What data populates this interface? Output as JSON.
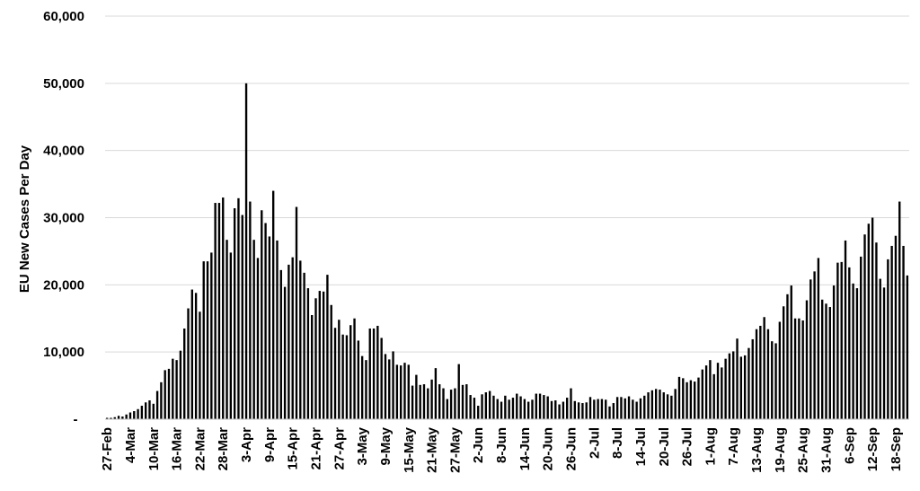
{
  "chart_data": {
    "type": "bar",
    "xlabel": "",
    "ylabel": "EU New Cases Per Day",
    "ylim": [
      0,
      60000
    ],
    "grid": true,
    "legend": "none",
    "bar_color": "#000000",
    "grid_color": "#d9d9d9",
    "yticks": [
      {
        "value": 0,
        "label": "-"
      },
      {
        "value": 10000,
        "label": "10,000"
      },
      {
        "value": 20000,
        "label": "20,000"
      },
      {
        "value": 30000,
        "label": "30,000"
      },
      {
        "value": 40000,
        "label": "40,000"
      },
      {
        "value": 50000,
        "label": "50,000"
      },
      {
        "value": 60000,
        "label": "60,000"
      }
    ],
    "xticks": [
      {
        "index": 0,
        "label": "27-Feb"
      },
      {
        "index": 6,
        "label": "4-Mar"
      },
      {
        "index": 12,
        "label": "10-Mar"
      },
      {
        "index": 18,
        "label": "16-Mar"
      },
      {
        "index": 24,
        "label": "22-Mar"
      },
      {
        "index": 30,
        "label": "28-Mar"
      },
      {
        "index": 36,
        "label": "3-Apr"
      },
      {
        "index": 42,
        "label": "9-Apr"
      },
      {
        "index": 48,
        "label": "15-Apr"
      },
      {
        "index": 54,
        "label": "21-Apr"
      },
      {
        "index": 60,
        "label": "27-Apr"
      },
      {
        "index": 66,
        "label": "3-May"
      },
      {
        "index": 72,
        "label": "9-May"
      },
      {
        "index": 78,
        "label": "15-May"
      },
      {
        "index": 84,
        "label": "21-May"
      },
      {
        "index": 90,
        "label": "27-May"
      },
      {
        "index": 96,
        "label": "2-Jun"
      },
      {
        "index": 102,
        "label": "8-Jun"
      },
      {
        "index": 108,
        "label": "14-Jun"
      },
      {
        "index": 114,
        "label": "20-Jun"
      },
      {
        "index": 120,
        "label": "26-Jun"
      },
      {
        "index": 126,
        "label": "2-Jul"
      },
      {
        "index": 132,
        "label": "8-Jul"
      },
      {
        "index": 138,
        "label": "14-Jul"
      },
      {
        "index": 144,
        "label": "20-Jul"
      },
      {
        "index": 150,
        "label": "26-Jul"
      },
      {
        "index": 156,
        "label": "1-Aug"
      },
      {
        "index": 162,
        "label": "7-Aug"
      },
      {
        "index": 168,
        "label": "13-Aug"
      },
      {
        "index": 174,
        "label": "19-Aug"
      },
      {
        "index": 180,
        "label": "25-Aug"
      },
      {
        "index": 186,
        "label": "31-Aug"
      },
      {
        "index": 192,
        "label": "6-Sep"
      },
      {
        "index": 198,
        "label": "12-Sep"
      },
      {
        "index": 204,
        "label": "18-Sep"
      }
    ],
    "values": [
      200,
      200,
      300,
      500,
      400,
      700,
      1000,
      1200,
      1500,
      2000,
      2500,
      2800,
      2300,
      4200,
      5500,
      7300,
      7500,
      9000,
      8800,
      10200,
      13500,
      16500,
      19300,
      18800,
      16000,
      23500,
      23500,
      24800,
      32200,
      32200,
      33000,
      26700,
      24800,
      31400,
      32900,
      30400,
      50000,
      32400,
      26700,
      24000,
      31100,
      29200,
      27200,
      34000,
      26600,
      22200,
      19700,
      23000,
      24100,
      31600,
      23600,
      21800,
      19500,
      15500,
      18000,
      19100,
      19000,
      21500,
      17000,
      13600,
      14800,
      12600,
      12500,
      14000,
      15000,
      11700,
      9400,
      8800,
      13500,
      13500,
      13900,
      12100,
      9700,
      8900,
      10100,
      8100,
      8000,
      8400,
      8100,
      5000,
      6600,
      5100,
      5200,
      4600,
      5900,
      7600,
      5200,
      4600,
      3000,
      4400,
      4600,
      8200,
      5100,
      5200,
      3600,
      3200,
      2000,
      3700,
      4000,
      4200,
      3500,
      3000,
      2600,
      3500,
      2900,
      3200,
      3800,
      3400,
      3000,
      2600,
      2900,
      3800,
      3800,
      3600,
      3400,
      2700,
      2800,
      2200,
      2600,
      3200,
      4600,
      2700,
      2500,
      2400,
      2500,
      3300,
      2900,
      3000,
      3000,
      2900,
      1900,
      2400,
      3300,
      3300,
      3100,
      3400,
      2900,
      2600,
      3100,
      3500,
      4000,
      4300,
      4500,
      4400,
      4000,
      3700,
      3500,
      4500,
      6300,
      6100,
      5500,
      5800,
      5600,
      6200,
      7400,
      8000,
      8800,
      6700,
      8400,
      7700,
      9000,
      9800,
      10100,
      12000,
      9300,
      9500,
      10600,
      11900,
      13400,
      13900,
      15200,
      13400,
      11600,
      11300,
      14500,
      16800,
      18600,
      19900,
      15000,
      15000,
      14700,
      17700,
      20800,
      22000,
      24000,
      17800,
      17200,
      16700,
      19900,
      23300,
      23400,
      26600,
      22600,
      20200,
      19500,
      24200,
      27500,
      29100,
      30000,
      26300,
      20900,
      19600,
      23800,
      25800,
      27300,
      32400,
      25800,
      21400
    ]
  }
}
